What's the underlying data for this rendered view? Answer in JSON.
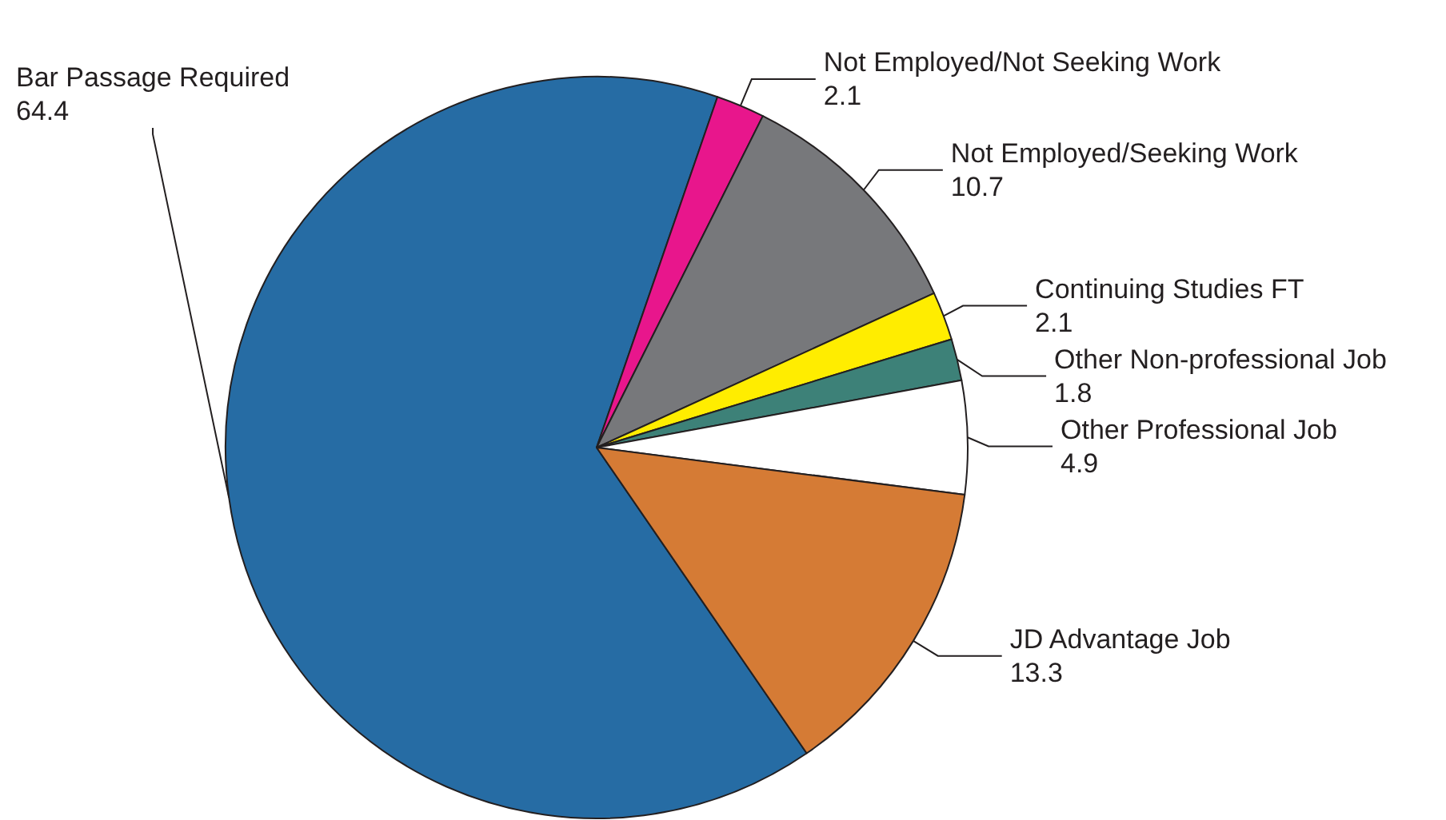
{
  "chart_data": {
    "type": "pie",
    "categories": [
      "Bar Passage Required",
      "Not Employed/Not Seeking Work",
      "Not Employed/Seeking Work",
      "Continuing Studies FT",
      "Other Non-professional Job",
      "Other Professional Job",
      "JD Advantage Job"
    ],
    "values": [
      64.4,
      2.1,
      10.7,
      2.1,
      1.8,
      4.9,
      13.3
    ],
    "colors": [
      "#266ca4",
      "#e8168c",
      "#77787b",
      "#ffed00",
      "#3d8178",
      "#ffffff",
      "#d57b35"
    ],
    "data_labels": true,
    "legend": false
  }
}
